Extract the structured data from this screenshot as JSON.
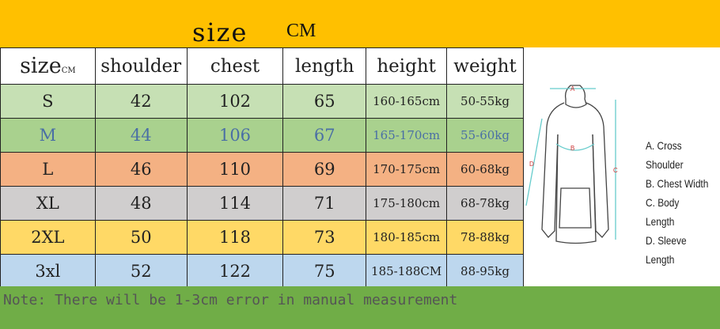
{
  "header": {
    "title": "size",
    "unit": "CM"
  },
  "table": {
    "columns": [
      "size",
      "shoulder",
      "chest",
      "length",
      "height",
      "weight"
    ],
    "size_unit": "CM",
    "rows": [
      {
        "size": "S",
        "shoulder": "42",
        "chest": "102",
        "length": "65",
        "height": "160-165cm",
        "weight": "50-55kg",
        "color": "#C6E0B4",
        "text": "#222222"
      },
      {
        "size": "M",
        "shoulder": "44",
        "chest": "106",
        "length": "67",
        "height": "165-170cm",
        "weight": "55-60kg",
        "color": "#A9D18E",
        "text": "#4A6FA5"
      },
      {
        "size": "L",
        "shoulder": "46",
        "chest": "110",
        "length": "69",
        "height": "170-175cm",
        "weight": "60-68kg",
        "color": "#F4B183",
        "text": "#222222"
      },
      {
        "size": "XL",
        "shoulder": "48",
        "chest": "114",
        "length": "71",
        "height": "175-180cm",
        "weight": "68-78kg",
        "color": "#D0CECE",
        "text": "#222222"
      },
      {
        "size": "2XL",
        "shoulder": "50",
        "chest": "118",
        "length": "73",
        "height": "180-185cm",
        "weight": "78-88kg",
        "color": "#FFD966",
        "text": "#222222"
      },
      {
        "size": "3xl",
        "shoulder": "52",
        "chest": "122",
        "length": "75",
        "height": "185-188CM",
        "weight": "88-95kg",
        "color": "#BDD7EE",
        "text": "#222222"
      }
    ]
  },
  "diagram": {
    "labels": [
      "A",
      "B",
      "C",
      "D"
    ],
    "legend": [
      "A. Cross Shoulder",
      "B. Chest Width",
      "C. Body Length",
      "D. Sleeve Length"
    ]
  },
  "note": "Note: There will be 1-3cm error in manual measurement"
}
